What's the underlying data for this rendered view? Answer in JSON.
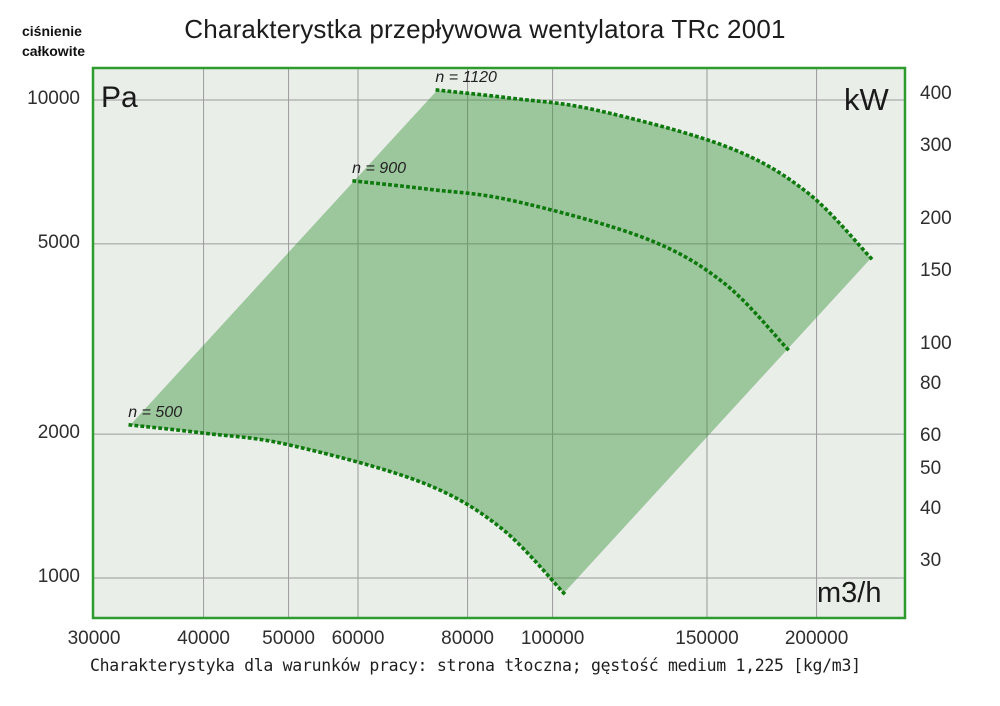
{
  "header": {
    "title": "Charakterystka przepływowa wentylatora TRc 2001",
    "pressure_label_line1": "ciśnienie",
    "pressure_label_line2": "całkowite"
  },
  "caption": "Charakterystyka dla warunków pracy: strona tłoczna; gęstość medium 1,225 [kg/m3]",
  "chart_data": {
    "type": "area",
    "title": "Charakterystka przepływowa wentylatora TRc 2001",
    "description": "Fan operating envelope between speed curves, log-log axes",
    "x_axis": {
      "unit": "m3/h",
      "scale": "log",
      "ticks": [
        30000,
        40000,
        50000,
        60000,
        80000,
        100000,
        150000,
        200000
      ],
      "range": [
        30000,
        252000
      ]
    },
    "y_axis_left": {
      "name": "ciśnienie całkowite",
      "unit": "Pa",
      "scale": "log",
      "ticks": [
        10000,
        5000,
        2000,
        1000
      ],
      "range": [
        820,
        11700
      ]
    },
    "y_axis_right": {
      "unit": "kW",
      "scale": "log",
      "ticks": [
        400,
        300,
        200,
        150,
        100,
        80,
        60,
        50,
        40,
        30
      ]
    },
    "grid": true,
    "series": [
      {
        "name": "n = 500",
        "style": "dotted",
        "points": [
          [
            33000,
            2090
          ],
          [
            40000,
            2010
          ],
          [
            50000,
            1900
          ],
          [
            70600,
            1590
          ],
          [
            87000,
            1280
          ],
          [
            103000,
            930
          ]
        ]
      },
      {
        "name": "n = 900",
        "style": "dotted",
        "points": [
          [
            59400,
            6770
          ],
          [
            72000,
            6510
          ],
          [
            90000,
            6160
          ],
          [
            127100,
            5150
          ],
          [
            156600,
            4150
          ],
          [
            185400,
            3010
          ]
        ]
      },
      {
        "name": "n = 1120",
        "style": "dotted",
        "points": [
          [
            73900,
            10490
          ],
          [
            89600,
            10090
          ],
          [
            112000,
            9530
          ],
          [
            158100,
            7980
          ],
          [
            194900,
            6420
          ],
          [
            230700,
            4670
          ]
        ]
      }
    ],
    "envelope": "shaded region bounded by n = 500 curve, n = 1120 curve and straight min/max flow lines",
    "colors": {
      "border": "#2e9b2e",
      "plot_background": "#e9eee9",
      "gridline": "#9b9b9b",
      "envelope_fill": "rgba(62,148,62,0.45)",
      "curve_dots": "#0e7a0e"
    }
  }
}
